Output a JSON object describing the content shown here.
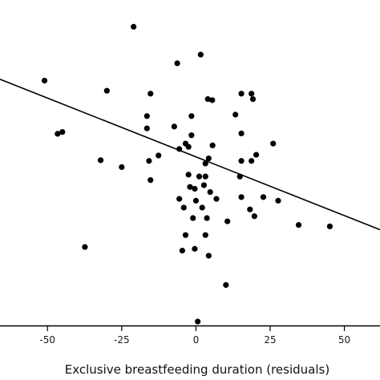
{
  "chart_data": {
    "type": "scatter",
    "title": "",
    "xlabel": "Exclusive breastfeeding duration (residuals)",
    "ylabel": "",
    "xlim": [
      -66,
      62
    ],
    "ylim": [
      -45,
      45
    ],
    "x_ticks": [
      -50,
      -25,
      0,
      25,
      50
    ],
    "x_tick_labels": [
      "-50",
      "-25",
      "0",
      "25",
      "50"
    ],
    "grid": false,
    "point_color": "#000000",
    "line_color": "#000000",
    "points": [
      {
        "x": -21,
        "y": 37.6
      },
      {
        "x": -51,
        "y": 22.7
      },
      {
        "x": 1.6,
        "y": 29.9
      },
      {
        "x": -6.3,
        "y": 27.5
      },
      {
        "x": -30,
        "y": 19.9
      },
      {
        "x": -15.3,
        "y": 19.1
      },
      {
        "x": -46.6,
        "y": 8.0
      },
      {
        "x": -45,
        "y": 8.5
      },
      {
        "x": -16.5,
        "y": 12.9
      },
      {
        "x": -16.5,
        "y": 9.5
      },
      {
        "x": 4,
        "y": 17.6
      },
      {
        "x": 5.5,
        "y": 17.3
      },
      {
        "x": 15.3,
        "y": 19.1
      },
      {
        "x": 18.7,
        "y": 19.1
      },
      {
        "x": 19.2,
        "y": 17.6
      },
      {
        "x": -7.3,
        "y": 10.0
      },
      {
        "x": -1.5,
        "y": 12.9
      },
      {
        "x": 13.3,
        "y": 13.3
      },
      {
        "x": -1.5,
        "y": 7.6
      },
      {
        "x": -5.6,
        "y": 3.8
      },
      {
        "x": -3.5,
        "y": 5.3
      },
      {
        "x": 5.6,
        "y": 4.8
      },
      {
        "x": 26,
        "y": 5.3
      },
      {
        "x": 15.3,
        "y": 8.1
      },
      {
        "x": -15.8,
        "y": 0.5
      },
      {
        "x": -12.6,
        "y": 2.0
      },
      {
        "x": -32.1,
        "y": 0.7
      },
      {
        "x": -25,
        "y": -1.2
      },
      {
        "x": -2.5,
        "y": 4.4
      },
      {
        "x": 4.3,
        "y": 1.2
      },
      {
        "x": 3.2,
        "y": -0.2
      },
      {
        "x": 20.3,
        "y": 2.2
      },
      {
        "x": 18.7,
        "y": 0.5
      },
      {
        "x": 15.3,
        "y": 0.5
      },
      {
        "x": -15.3,
        "y": -4.8
      },
      {
        "x": -2.5,
        "y": -3.3
      },
      {
        "x": 1.1,
        "y": -3.8
      },
      {
        "x": 3.2,
        "y": -3.8
      },
      {
        "x": 14.8,
        "y": -3.8
      },
      {
        "x": -2,
        "y": -6.7
      },
      {
        "x": -0.4,
        "y": -7.2
      },
      {
        "x": 2.7,
        "y": -6.2
      },
      {
        "x": 4.8,
        "y": -8.1
      },
      {
        "x": -5.6,
        "y": -10.0
      },
      {
        "x": 0,
        "y": -10.5
      },
      {
        "x": 6.9,
        "y": -10.0
      },
      {
        "x": 15.3,
        "y": -9.5
      },
      {
        "x": 22.7,
        "y": -9.5
      },
      {
        "x": 27.7,
        "y": -10.5
      },
      {
        "x": -4.1,
        "y": -12.4
      },
      {
        "x": 2.1,
        "y": -12.4
      },
      {
        "x": 18.2,
        "y": -12.9
      },
      {
        "x": 19.7,
        "y": -14.8
      },
      {
        "x": -1,
        "y": -15.3
      },
      {
        "x": 3.7,
        "y": -15.3
      },
      {
        "x": 10.6,
        "y": -16.2
      },
      {
        "x": 34.6,
        "y": -17.2
      },
      {
        "x": 45.1,
        "y": -17.6
      },
      {
        "x": -3.5,
        "y": -20.0
      },
      {
        "x": 3.2,
        "y": -20.0
      },
      {
        "x": -37.4,
        "y": -23.3
      },
      {
        "x": -0.4,
        "y": -23.8
      },
      {
        "x": -4.6,
        "y": -24.3
      },
      {
        "x": 4.3,
        "y": -25.7
      },
      {
        "x": 10.1,
        "y": -33.8
      },
      {
        "x": 0.6,
        "y": -43.9
      }
    ],
    "regression": {
      "slope": -0.325,
      "intercept": 1.63
    }
  }
}
